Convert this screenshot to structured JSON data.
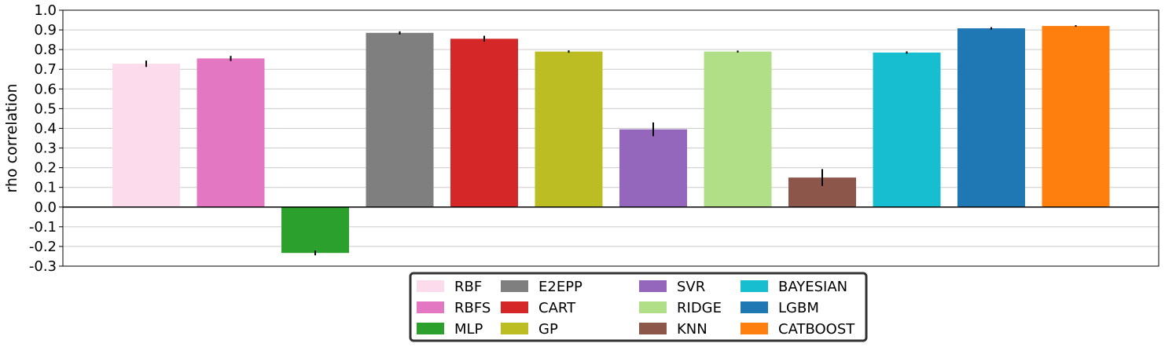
{
  "chart_data": {
    "type": "bar",
    "title": "",
    "xlabel": "",
    "ylabel": "rho correlation",
    "ylim": [
      -0.3,
      1.0
    ],
    "yticks": [
      "1.0",
      "0.9",
      "0.8",
      "0.7",
      "0.6",
      "0.5",
      "0.4",
      "0.3",
      "0.2",
      "0.1",
      "0.0",
      "-0.1",
      "-0.2",
      "-0.3"
    ],
    "grid": "horizontal",
    "legend_position": "bottom-center",
    "categories": [
      "RBF",
      "RBFS",
      "MLP",
      "E2EPP",
      "CART",
      "GP",
      "SVR",
      "RIDGE",
      "KNN",
      "BAYESIAN",
      "LGBM",
      "CATBOOST"
    ],
    "values": [
      0.728,
      0.755,
      -0.233,
      0.885,
      0.855,
      0.79,
      0.395,
      0.79,
      0.15,
      0.785,
      0.908,
      0.92
    ],
    "errors": [
      0.016,
      0.013,
      0.012,
      0.008,
      0.015,
      0.006,
      0.035,
      0.005,
      0.043,
      0.006,
      0.006,
      0.004
    ],
    "colors": [
      "#fcdbed",
      "#e377c2",
      "#2ca02c",
      "#7f7f7f",
      "#d62728",
      "#bcbd22",
      "#9467bd",
      "#b1df87",
      "#8c564b",
      "#17becf",
      "#1f77b4",
      "#ff7f0e"
    ],
    "legend_order": [
      "RBF",
      "RBFS",
      "MLP",
      "E2EPP",
      "CART",
      "GP",
      "SVR",
      "RIDGE",
      "KNN",
      "BAYESIAN",
      "LGBM",
      "CATBOOST"
    ]
  }
}
